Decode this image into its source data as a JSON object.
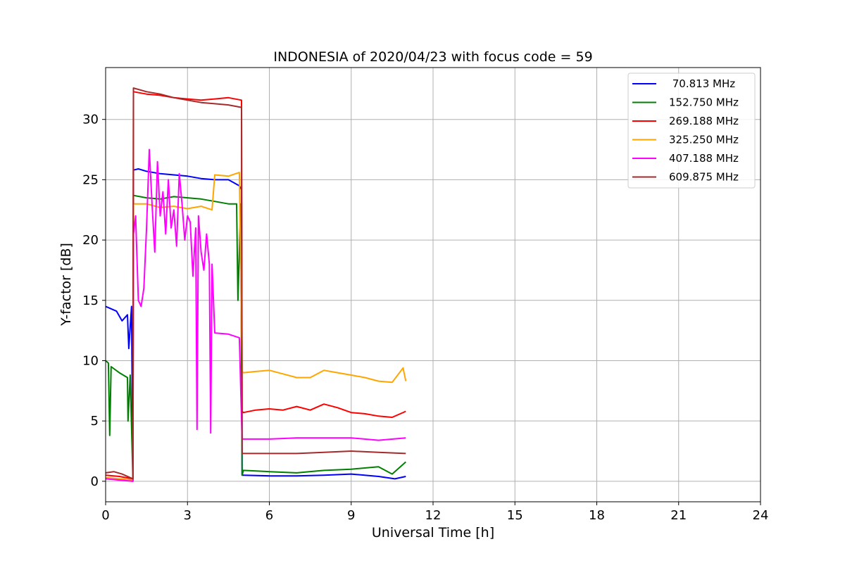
{
  "chart_data": {
    "type": "line",
    "title": "INDONESIA of 2020/04/23 with focus code = 59",
    "xlabel": "Universal Time [h]",
    "ylabel": "Y-factor [dB]",
    "xlim": [
      0,
      24
    ],
    "ylim": [
      -1.7,
      34.3
    ],
    "xticks": [
      0,
      3,
      6,
      9,
      12,
      15,
      18,
      21,
      24
    ],
    "yticks": [
      0,
      5,
      10,
      15,
      20,
      25,
      30
    ],
    "grid": true,
    "legend_position": "top-right",
    "series": [
      {
        "name": " 70.813 MHz",
        "color": "#0000ff",
        "x": [
          0,
          0.2,
          0.4,
          0.6,
          0.8,
          0.85,
          0.95,
          1.0,
          1.02,
          1.2,
          1.5,
          2.0,
          2.5,
          3.0,
          3.5,
          4.0,
          4.5,
          4.9,
          4.98,
          5.0,
          5.05,
          6,
          7,
          8,
          9,
          10,
          10.6,
          11
        ],
        "y": [
          14.5,
          14.3,
          14.1,
          13.3,
          13.8,
          11.0,
          14.5,
          0.1,
          25.8,
          25.9,
          25.7,
          25.5,
          25.4,
          25.3,
          25.1,
          25.0,
          25.0,
          24.5,
          24.2,
          0.5,
          0.5,
          0.45,
          0.45,
          0.5,
          0.6,
          0.4,
          0.2,
          0.4
        ]
      },
      {
        "name": "152.750 MHz",
        "color": "#008000",
        "x": [
          0,
          0.1,
          0.15,
          0.2,
          0.5,
          0.8,
          0.82,
          0.9,
          1.0,
          1.02,
          1.5,
          2.0,
          2.5,
          3.0,
          3.5,
          4.0,
          4.5,
          4.8,
          4.85,
          4.95,
          5.0,
          5.05,
          6,
          7,
          8,
          9,
          10,
          10.5,
          11
        ],
        "y": [
          10.0,
          9.8,
          3.8,
          9.5,
          9.0,
          8.6,
          5.0,
          8.8,
          0.0,
          23.7,
          23.5,
          23.4,
          23.6,
          23.5,
          23.4,
          23.2,
          23.0,
          23.0,
          15.0,
          23.0,
          0.5,
          0.9,
          0.8,
          0.7,
          0.9,
          1.0,
          1.2,
          0.6,
          1.6
        ]
      },
      {
        "name": "269.188 MHz",
        "color": "#ff0000",
        "x": [
          0,
          0.5,
          1.0,
          1.02,
          1.5,
          2.0,
          2.5,
          3.0,
          3.5,
          4.0,
          4.5,
          4.98,
          5.0,
          5.05,
          5.5,
          6,
          6.5,
          7,
          7.5,
          8,
          8.5,
          9,
          9.5,
          10,
          10.5,
          11
        ],
        "y": [
          0.5,
          0.4,
          0.2,
          32.3,
          32.1,
          32.0,
          31.8,
          31.7,
          31.6,
          31.7,
          31.8,
          31.6,
          5.8,
          5.7,
          5.9,
          6.0,
          5.9,
          6.2,
          5.9,
          6.4,
          6.1,
          5.7,
          5.6,
          5.4,
          5.3,
          5.8
        ]
      },
      {
        "name": "325.250 MHz",
        "color": "#ffa500",
        "x": [
          0,
          0.5,
          1.0,
          1.02,
          1.5,
          2.0,
          2.5,
          3.0,
          3.5,
          3.9,
          4.0,
          4.5,
          4.9,
          5.0,
          5.05,
          5.5,
          6,
          6.5,
          7,
          7.5,
          8,
          8.5,
          9,
          9.5,
          10,
          10.5,
          10.9,
          11
        ],
        "y": [
          0.3,
          0.2,
          0.1,
          23.0,
          23.0,
          22.7,
          22.8,
          22.6,
          22.8,
          22.5,
          25.4,
          25.3,
          25.6,
          9.1,
          9.0,
          9.1,
          9.2,
          8.9,
          8.6,
          8.6,
          9.2,
          9.0,
          8.8,
          8.6,
          8.3,
          8.2,
          9.4,
          8.3
        ]
      },
      {
        "name": "407.188 MHz",
        "color": "#ff00ff",
        "x": [
          0,
          0.5,
          1.0,
          1.02,
          1.1,
          1.2,
          1.3,
          1.4,
          1.5,
          1.6,
          1.7,
          1.8,
          1.9,
          2.0,
          2.1,
          2.2,
          2.3,
          2.4,
          2.5,
          2.6,
          2.7,
          2.8,
          2.9,
          3.0,
          3.1,
          3.2,
          3.3,
          3.35,
          3.4,
          3.5,
          3.6,
          3.7,
          3.8,
          3.85,
          3.9,
          4.0,
          4.5,
          4.9,
          5.0,
          5.05,
          6,
          7,
          8,
          9,
          10,
          11
        ],
        "y": [
          0.2,
          0.1,
          0.0,
          20.5,
          22.0,
          15.0,
          14.5,
          16.0,
          21.0,
          27.5,
          23.0,
          19.0,
          26.5,
          22.0,
          24.0,
          20.5,
          25.0,
          21.0,
          22.5,
          19.5,
          25.5,
          23.0,
          20.0,
          22.0,
          21.5,
          17.0,
          21.0,
          4.3,
          22.0,
          19.0,
          17.5,
          20.5,
          18.0,
          4.0,
          18.0,
          12.3,
          12.2,
          11.9,
          3.5,
          3.5,
          3.5,
          3.6,
          3.6,
          3.6,
          3.4,
          3.6
        ]
      },
      {
        "name": "609.875 MHz",
        "color": "#a52a2a",
        "x": [
          0,
          0.3,
          0.6,
          1.0,
          1.02,
          1.5,
          2.0,
          2.5,
          3.0,
          3.5,
          4.0,
          4.5,
          4.98,
          5.0,
          5.05,
          6,
          7,
          8,
          9,
          10,
          11
        ],
        "y": [
          0.7,
          0.8,
          0.6,
          0.2,
          32.6,
          32.3,
          32.1,
          31.8,
          31.6,
          31.4,
          31.3,
          31.2,
          31.0,
          2.3,
          2.3,
          2.3,
          2.3,
          2.4,
          2.5,
          2.4,
          2.3
        ]
      }
    ]
  }
}
